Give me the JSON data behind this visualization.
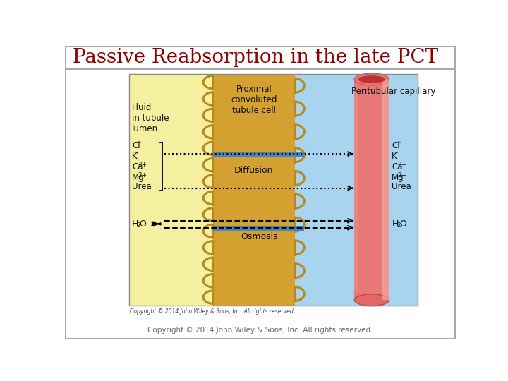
{
  "title": "Passive Reabsorption in the late PCT",
  "title_color": "#8B0000",
  "title_fontsize": 20,
  "bg_color": "#ffffff",
  "copyright_inner": "Copyright © 2014 John Wiley & Sons, Inc. All rights reserved.",
  "copyright_outer": "Copyright © 2014 John Wiley & Sons, Inc. All rights reserved.",
  "lumen_bg": "#f5f0a0",
  "cell_color": "#d4a030",
  "cell_dark": "#b8891a",
  "capillary_bg": "#a8d4f0",
  "capillary_color": "#e87878",
  "label_fluid": "Fluid\nin tubule\nlumen",
  "label_cell": "Proximal\nconvoluted\ntubule cell",
  "label_capillary": "Peritubular capillary",
  "label_diffusion": "Diffusion",
  "label_osmosis": "Osmosis",
  "water_left": "H",
  "water_right": "H",
  "tight_junction_color": "#4488bb"
}
